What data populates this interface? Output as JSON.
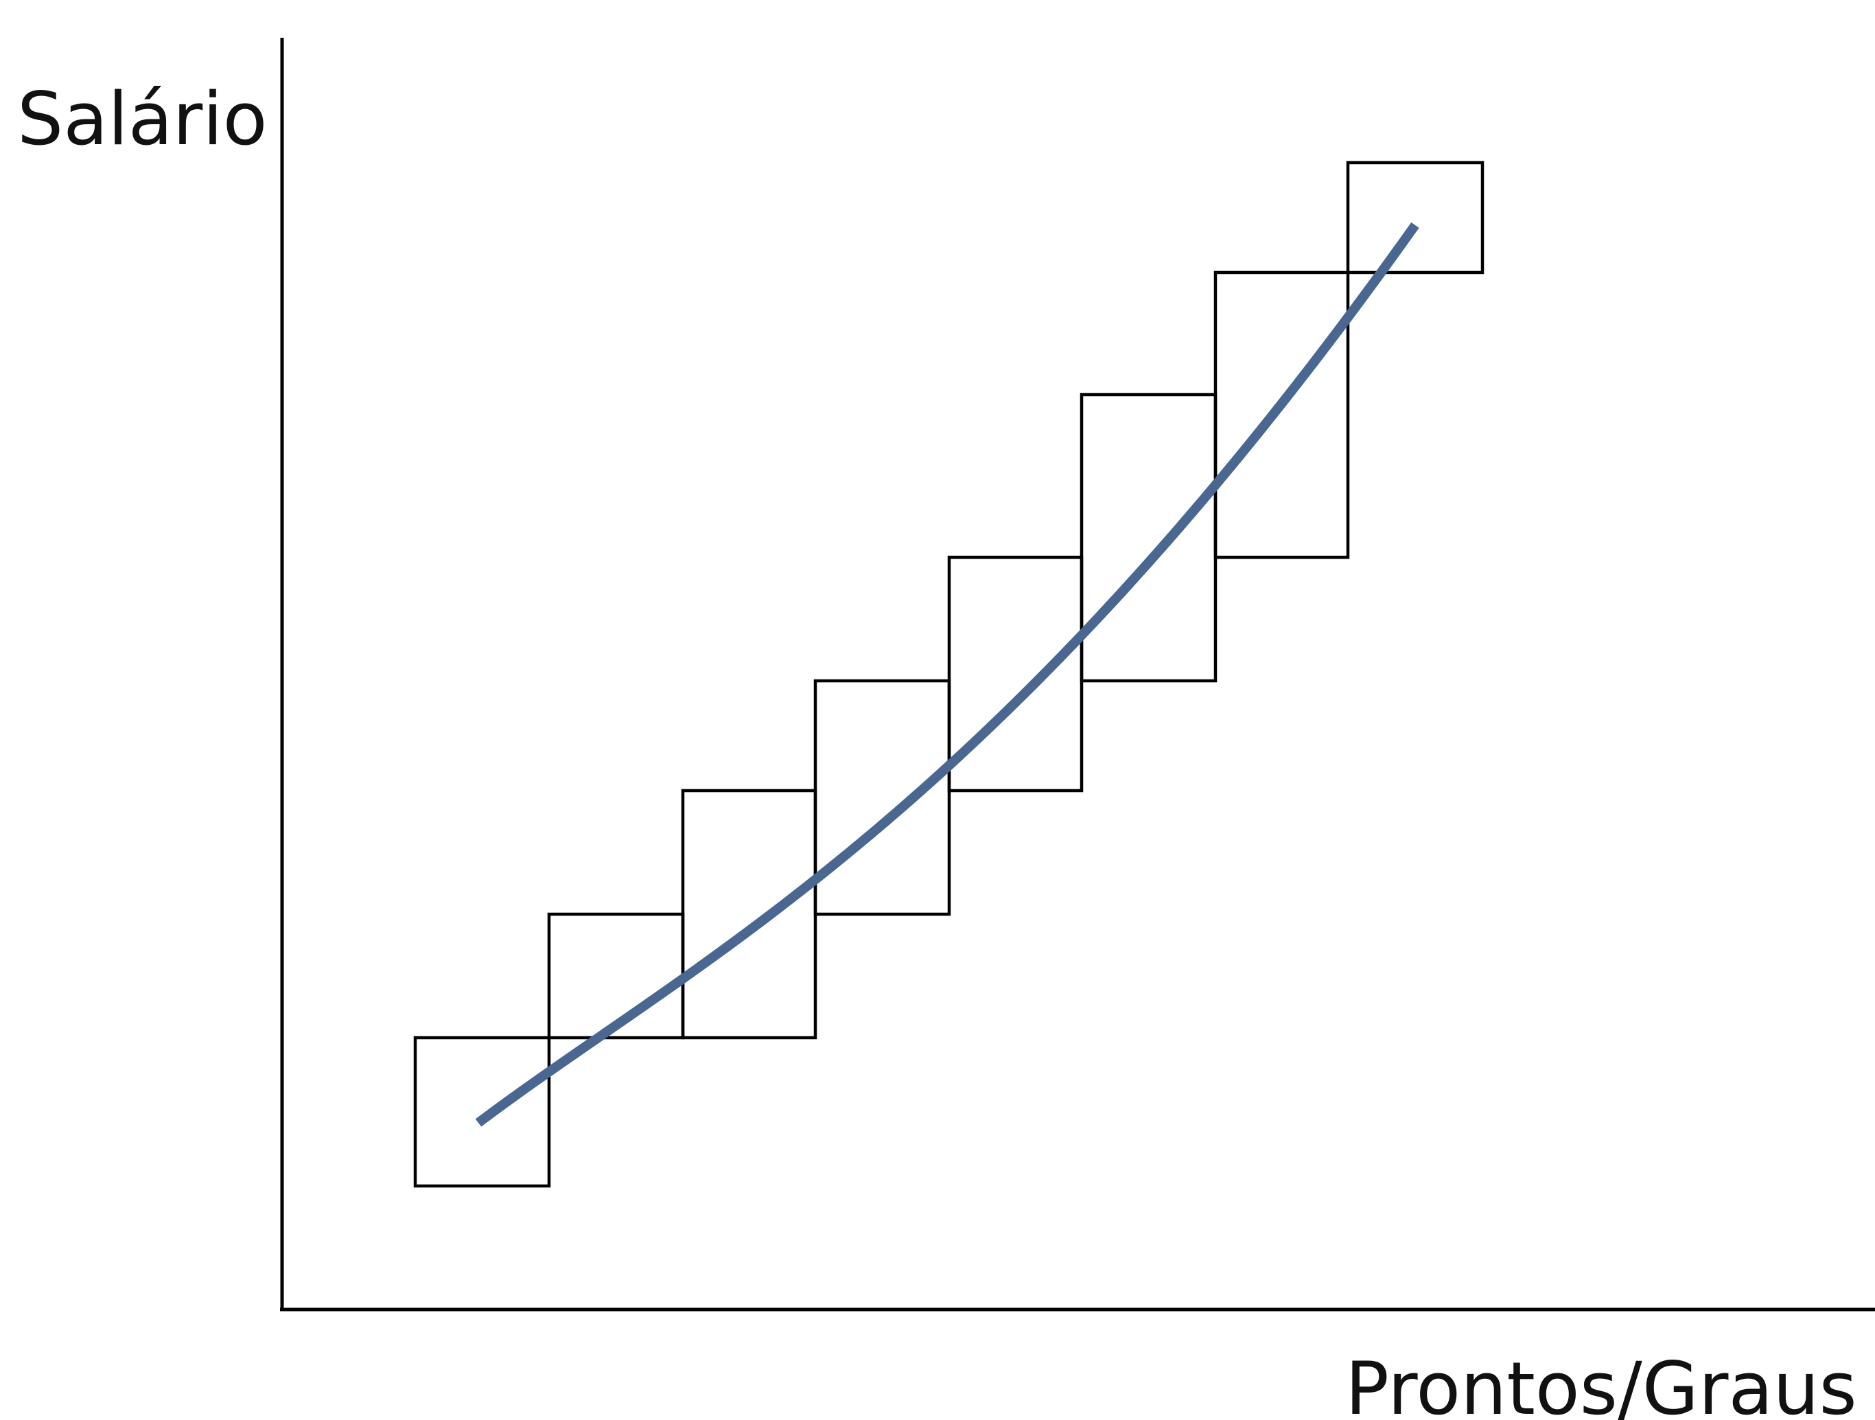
{
  "labels": {
    "y_axis": "Salário",
    "x_axis": "Prontos/Graus"
  },
  "colors": {
    "curve": "#4a6791",
    "lines": "#000000",
    "background": "#ffffff"
  },
  "diagram": {
    "description_type": "salary-structure-by-grades",
    "grade_count": 8
  }
}
